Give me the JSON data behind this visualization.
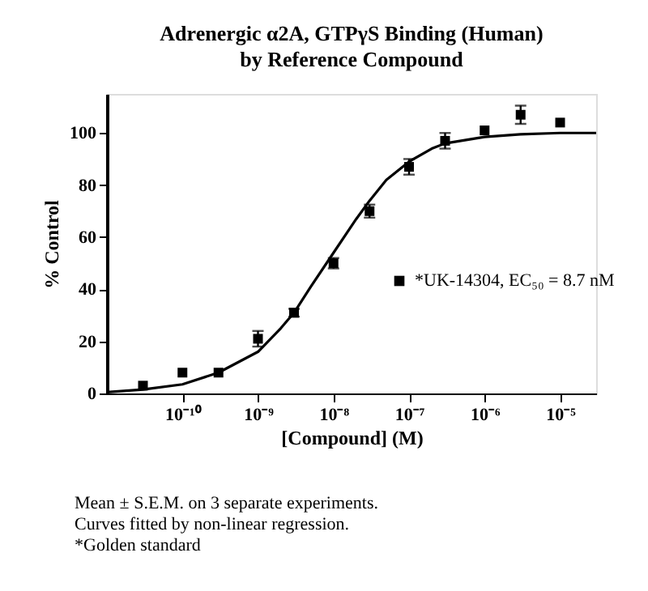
{
  "chart_data": {
    "type": "scatter",
    "title": "Adrenergic α2A, GTPγS Binding (Human)",
    "subtitle": "by Reference Compound",
    "xlabel": "[Compound] (M)",
    "ylabel": "% Control",
    "log": "x",
    "marker": "square",
    "legend": "right",
    "grid": false,
    "xlim": [
      1e-11,
      3e-05
    ],
    "ylim": [
      0,
      115
    ],
    "xticks": [
      {
        "value": 1e-10,
        "label": "10⁻¹⁰"
      },
      {
        "value": 1e-09,
        "label": "10⁻⁹"
      },
      {
        "value": 1e-08,
        "label": "10⁻⁸"
      },
      {
        "value": 1e-07,
        "label": "10⁻⁷"
      },
      {
        "value": 1e-06,
        "label": "10⁻⁶"
      },
      {
        "value": 1e-05,
        "label": "10⁻⁵"
      }
    ],
    "yticks": [
      0,
      20,
      40,
      60,
      80,
      100
    ],
    "series": [
      {
        "name": "*UK-14304, EC₅₀ = 8.7 nM",
        "color": "#000000",
        "x": [
          3e-11,
          1e-10,
          3e-10,
          1e-09,
          3e-09,
          1e-08,
          3e-08,
          1e-07,
          3e-07,
          1e-06,
          3e-06,
          1e-05
        ],
        "values": [
          3,
          8,
          8,
          21,
          31,
          50,
          70,
          87,
          97,
          101,
          107,
          104
        ],
        "errors": [
          null,
          null,
          null,
          3,
          1.5,
          2,
          2.5,
          3,
          3,
          null,
          3.5,
          null
        ]
      },
      {
        "type": "line",
        "color": "#000000",
        "line_style": "solid",
        "marker": "none",
        "x": [
          1e-11,
          3e-11,
          1e-10,
          3e-10,
          1e-09,
          2e-09,
          3e-09,
          5e-09,
          1e-08,
          2e-08,
          3e-08,
          5e-08,
          1e-07,
          2e-07,
          3e-07,
          1e-06,
          3e-06,
          1e-05,
          3e-05
        ],
        "values": [
          0.5,
          1.5,
          3.5,
          8,
          16,
          25,
          31,
          41,
          54,
          67,
          74,
          82,
          89,
          94,
          96,
          98.5,
          99.5,
          100,
          100
        ]
      }
    ],
    "annotations": [
      "Mean ±  S.E.M. on 3 separate experiments.",
      " Curves fitted by non-linear regression.",
      "*Golden standard"
    ]
  }
}
